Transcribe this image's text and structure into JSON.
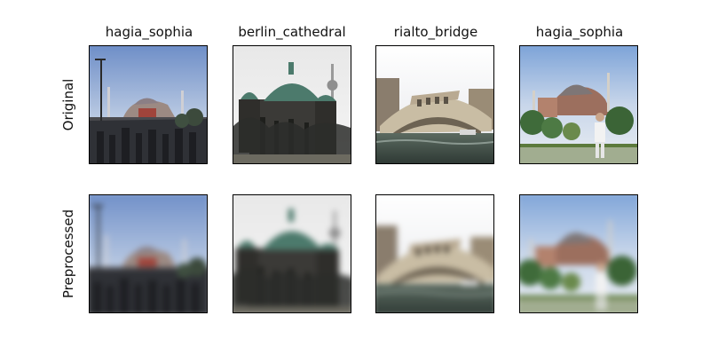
{
  "figure": {
    "columns": [
      "hagia_sophia",
      "berlin_cathedral",
      "rialto_bridge",
      "hagia_sophia"
    ],
    "rows": [
      "Original",
      "Preprocessed"
    ]
  },
  "panels": [
    {
      "row": "Original",
      "column": "hagia_sophia",
      "subject": "mosque-with-minarets-and-crowd",
      "state": "sharp"
    },
    {
      "row": "Original",
      "column": "berlin_cathedral",
      "subject": "domed-cathedral-with-tv-tower",
      "state": "sharp"
    },
    {
      "row": "Original",
      "column": "rialto_bridge",
      "subject": "arched-stone-bridge-over-canal",
      "state": "sharp"
    },
    {
      "row": "Original",
      "column": "hagia_sophia",
      "subject": "mosque-with-trees-and-person",
      "state": "sharp"
    },
    {
      "row": "Preprocessed",
      "column": "hagia_sophia",
      "subject": "mosque-with-minarets-and-crowd",
      "state": "blurred"
    },
    {
      "row": "Preprocessed",
      "column": "berlin_cathedral",
      "subject": "domed-cathedral-with-tv-tower",
      "state": "blurred"
    },
    {
      "row": "Preprocessed",
      "column": "rialto_bridge",
      "subject": "arched-stone-bridge-over-canal",
      "state": "blurred"
    },
    {
      "row": "Preprocessed",
      "column": "hagia_sophia",
      "subject": "mosque-with-trees-and-person",
      "state": "blurred"
    }
  ]
}
